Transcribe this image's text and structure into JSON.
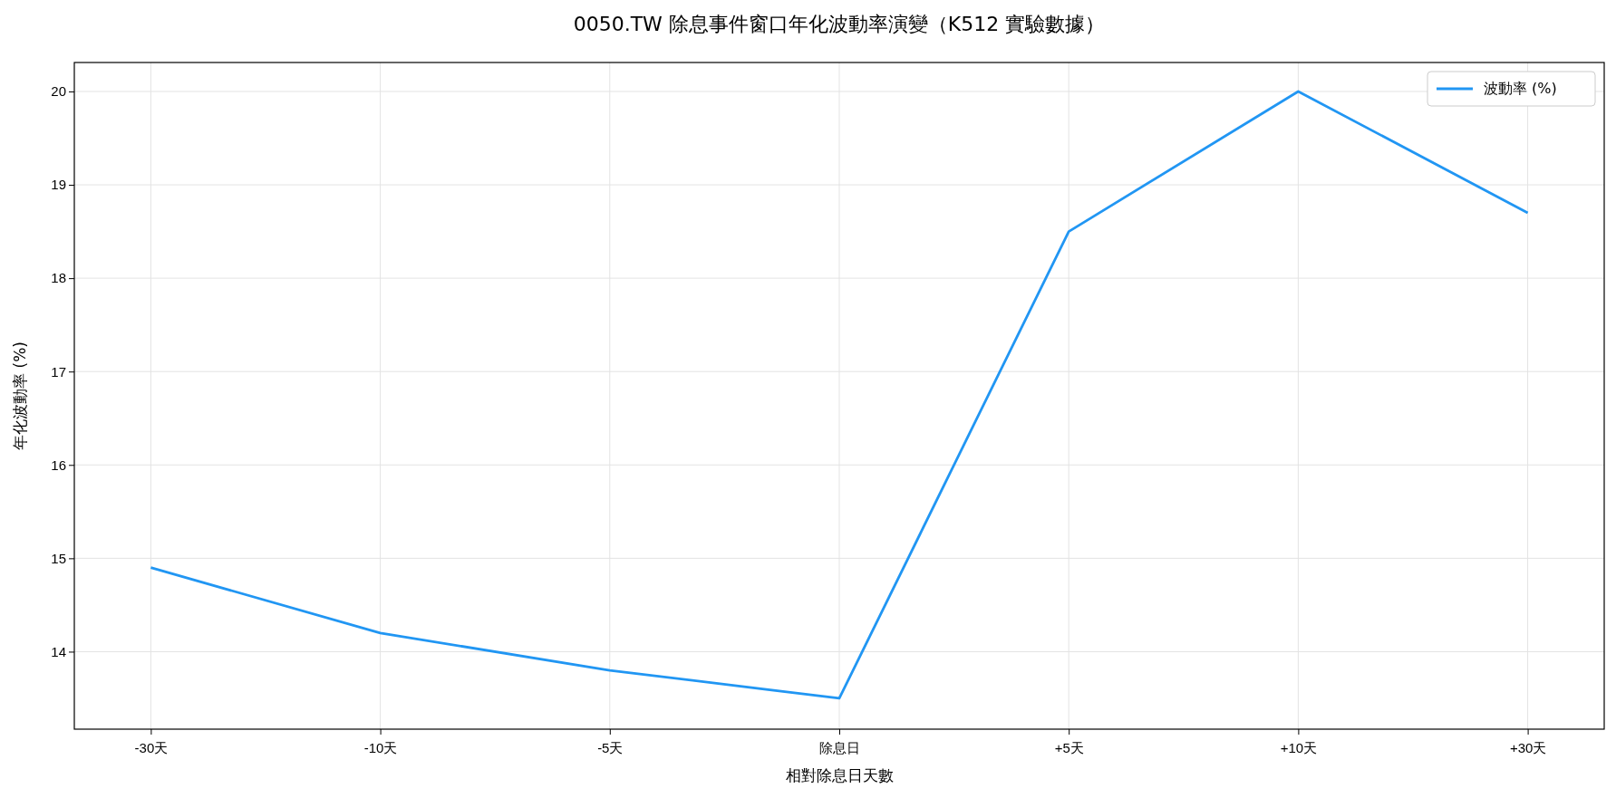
{
  "chart_data": {
    "type": "line",
    "title": "0050.TW 除息事件窗口年化波動率演變（K512 實驗數據）",
    "xlabel": "相對除息日天數",
    "ylabel": "年化波動率 (%)",
    "categories": [
      "-30天",
      "-10天",
      "-5天",
      "除息日",
      "+5天",
      "+10天",
      "+30天"
    ],
    "series": [
      {
        "name": "波動率 (%)",
        "color": "#2196f3",
        "values": [
          14.9,
          14.2,
          13.8,
          13.5,
          18.5,
          20.0,
          18.7
        ]
      }
    ],
    "ylim": [
      13.17,
      20.31
    ],
    "yticks": [
      14,
      15,
      16,
      17,
      18,
      19,
      20
    ],
    "grid": true,
    "legend": "top right",
    "marker": "none",
    "line_style": "solid"
  }
}
